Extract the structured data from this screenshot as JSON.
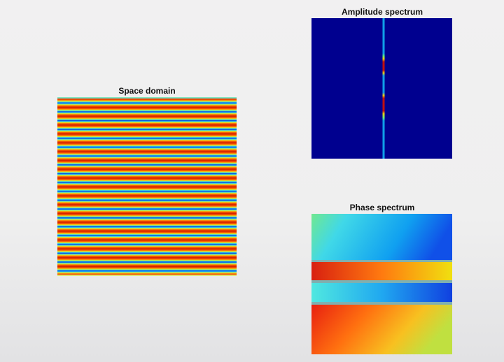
{
  "figure": {
    "panels": [
      {
        "title": "Space domain"
      },
      {
        "title": "Amplitude spectrum"
      },
      {
        "title": "Phase spectrum"
      }
    ]
  }
}
